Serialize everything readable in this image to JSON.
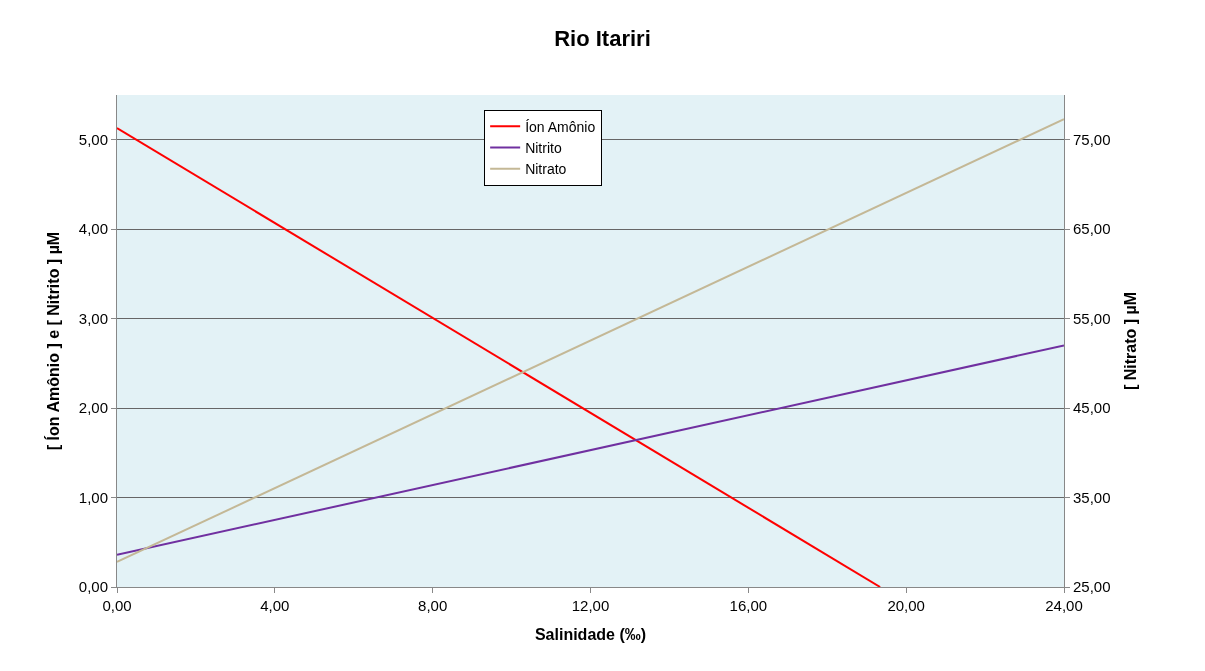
{
  "chart_data": {
    "type": "line",
    "title": "Rio Itariri",
    "xlabel": "Salinidade (‰)",
    "ylabel": "[ Íon Amônio ] e [ Nitrito ] µM",
    "y2label": "[ Nitrato ] µM",
    "series": [
      {
        "name": "Íon Amônio",
        "color": "#ff0000",
        "x": [
          0,
          19.34
        ],
        "values": [
          5.13,
          0
        ]
      },
      {
        "name": "Nitrito",
        "color": "#7030a0",
        "x": [
          0,
          24
        ],
        "values": [
          0.36,
          2.7
        ]
      },
      {
        "name": "Nitrato",
        "color": "#c4b896",
        "x": [
          0,
          24
        ],
        "values": [
          27.8,
          77.3
        ],
        "axis": "y2"
      }
    ],
    "xlim": [
      0,
      24
    ],
    "xticks": [
      {
        "value": 0,
        "label": "0,00"
      },
      {
        "value": 4,
        "label": "4,00"
      },
      {
        "value": 8,
        "label": "8,00"
      },
      {
        "value": 12,
        "label": "12,00"
      },
      {
        "value": 16,
        "label": "16,00"
      },
      {
        "value": 20,
        "label": "20,00"
      },
      {
        "value": 24,
        "label": "24,00"
      }
    ],
    "ylim": [
      0,
      5.5
    ],
    "yticks": [
      {
        "value": 0,
        "label": "0,00"
      },
      {
        "value": 1,
        "label": "1,00"
      },
      {
        "value": 2,
        "label": "2,00"
      },
      {
        "value": 3,
        "label": "3,00"
      },
      {
        "value": 4,
        "label": "4,00"
      },
      {
        "value": 5,
        "label": "5,00"
      }
    ],
    "y2lim": [
      25,
      80
    ],
    "y2ticks": [
      {
        "value": 25,
        "label": "25,00"
      },
      {
        "value": 35,
        "label": "35,00"
      },
      {
        "value": 45,
        "label": "45,00"
      },
      {
        "value": 55,
        "label": "55,00"
      },
      {
        "value": 65,
        "label": "65,00"
      },
      {
        "value": 75,
        "label": "75,00"
      }
    ],
    "grid": "y",
    "legend": "top",
    "marker": "none",
    "line_style": "solid"
  }
}
